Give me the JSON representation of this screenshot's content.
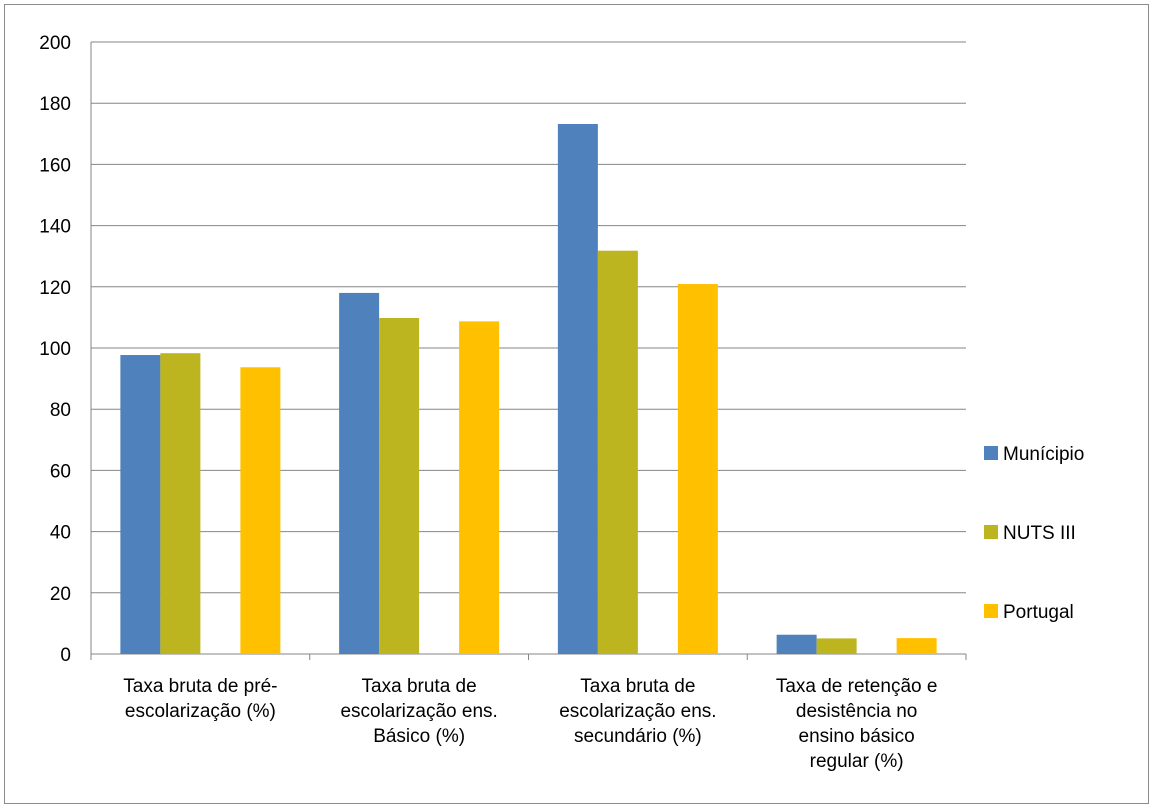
{
  "chart_data": {
    "type": "bar",
    "title": "",
    "xlabel": "",
    "ylabel": "",
    "ylim": [
      0,
      200
    ],
    "yticks": [
      0,
      20,
      40,
      60,
      80,
      100,
      120,
      140,
      160,
      180,
      200
    ],
    "grid": true,
    "legend_position": "right",
    "categories": [
      [
        "Taxa bruta de pré-",
        "escolarização (%)"
      ],
      [
        "Taxa bruta de",
        "escolarização ens.",
        "Básico (%)"
      ],
      [
        "Taxa bruta de",
        "escolarização ens.",
        "secundário (%)"
      ],
      [
        "Taxa de retenção e",
        "desistência no",
        "ensino básico",
        "regular (%)"
      ]
    ],
    "series": [
      {
        "name": "Munícipio",
        "color": "#4f81bd",
        "values": [
          97.7,
          118,
          173.2,
          6.3
        ]
      },
      {
        "name": "NUTS III",
        "color": "#bcb51f",
        "values": [
          98.3,
          109.8,
          131.8,
          5.1
        ]
      },
      {
        "name": "Portugal",
        "color": "#ffc000",
        "values": [
          93.7,
          108.7,
          120.9,
          5.2
        ]
      }
    ]
  }
}
